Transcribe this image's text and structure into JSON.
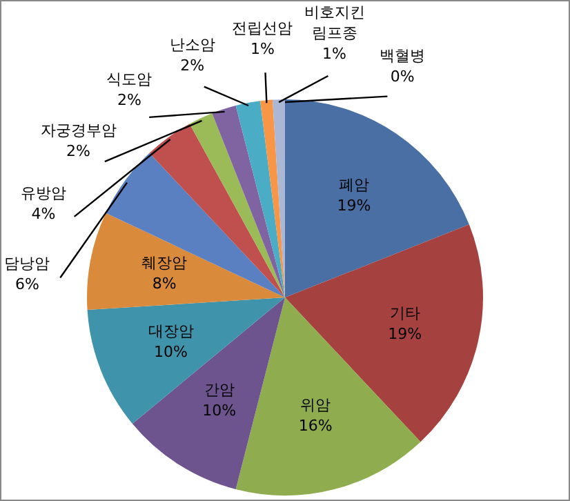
{
  "chart_data": {
    "type": "pie",
    "categories": [
      "폐암",
      "기타",
      "위암",
      "간암",
      "대장암",
      "췌장암",
      "담낭암",
      "유방암",
      "자궁경부암",
      "식도암",
      "난소암",
      "전립선암",
      "비호지킨 림프종",
      "백혈병"
    ],
    "values": [
      19,
      19,
      16,
      10,
      10,
      8,
      6,
      4,
      2,
      2,
      2,
      1,
      1,
      0
    ],
    "colors": [
      "#4a6fa5",
      "#a5413f",
      "#8fac4f",
      "#6d548f",
      "#3f93ab",
      "#d98a3a",
      "#5a80c2",
      "#c0504d",
      "#9bbb59",
      "#8064a2",
      "#4bacc6",
      "#f79646",
      "#aab8d6",
      "#d99694"
    ],
    "value_labels": [
      "19%",
      "19%",
      "16%",
      "10%",
      "10%",
      "8%",
      "6%",
      "4%",
      "2%",
      "2%",
      "2%",
      "1%",
      "1%",
      "0%"
    ],
    "legend": false
  }
}
